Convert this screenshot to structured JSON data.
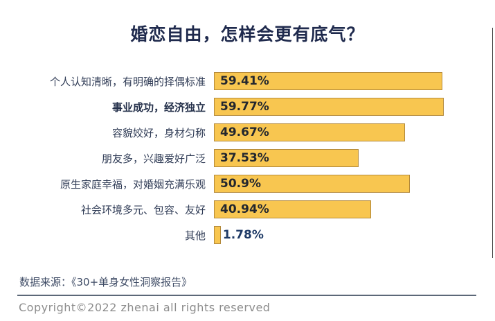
{
  "title": "婚恋自由，怎样会更有底气？",
  "chart_data": {
    "type": "bar",
    "orientation": "horizontal",
    "title": "婚恋自由，怎样会更有底气？",
    "categories": [
      "个人认知清晰，有明确的择偶标准",
      "事业成功，经济独立",
      "容貌姣好，身材匀称",
      "朋友多，兴趣爱好广泛",
      "原生家庭幸福，对婚姻充满乐观",
      "社会环境多元、包容、友好",
      "其他"
    ],
    "values": [
      59.41,
      59.77,
      49.67,
      37.53,
      50.9,
      40.94,
      1.78
    ],
    "value_labels": [
      "59.41%",
      "59.77%",
      "49.67%",
      "37.53%",
      "50.9%",
      "40.94%",
      "1.78%"
    ],
    "emphasized_category": "事业成功，经济独立",
    "xlim": [
      0,
      65
    ],
    "bar_color": "#f8c650",
    "bar_border_color": "#b3893a",
    "grid": false,
    "legend": false
  },
  "footer": {
    "source": "数据来源：《30+单身女性洞察报告》",
    "copyright": "Copyright©2022  zhenai  all rights reserved"
  }
}
